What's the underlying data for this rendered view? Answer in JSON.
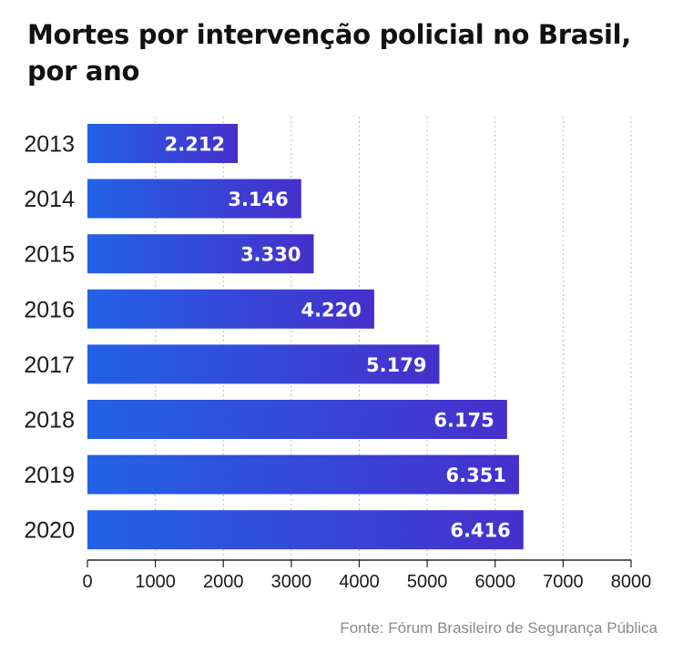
{
  "title": [
    "Mortes por intervenção policial no Brasil,",
    "por ano"
  ],
  "source": "Fonte: Fórum Brasileiro de Segurança Pública",
  "colors": {
    "bar_start": "#2362e6",
    "bar_end": "#4630cc",
    "grid": "#bcbcbc",
    "axis": "#222222"
  },
  "chart_data": {
    "type": "bar",
    "orientation": "horizontal",
    "title": "Mortes por intervenção policial no Brasil, por ano",
    "categories": [
      "2013",
      "2014",
      "2015",
      "2016",
      "2017",
      "2018",
      "2019",
      "2020"
    ],
    "values": [
      2212,
      3146,
      3330,
      4220,
      5179,
      6175,
      6351,
      6416
    ],
    "data_labels": [
      "2.212",
      "3.146",
      "3.330",
      "4.220",
      "5.179",
      "6.175",
      "6.351",
      "6.416"
    ],
    "xticks": [
      "0",
      "1000",
      "2000",
      "3000",
      "4000",
      "5000",
      "6000",
      "7000",
      "8000"
    ],
    "xlim": [
      0,
      8000
    ],
    "grid": "vertical dotted",
    "xlabel": "",
    "ylabel": ""
  }
}
